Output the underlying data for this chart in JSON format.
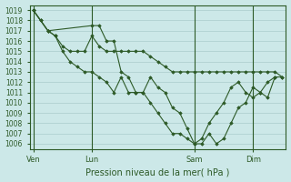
{
  "title": "",
  "xlabel": "Pression niveau de la mer( hPa )",
  "ylabel": "",
  "background_color": "#cce8e8",
  "grid_color": "#aacccc",
  "line_color": "#2d5a27",
  "ylim": [
    1005.5,
    1019.5
  ],
  "yticks": [
    1006,
    1007,
    1008,
    1009,
    1010,
    1011,
    1012,
    1013,
    1014,
    1015,
    1016,
    1017,
    1018,
    1019
  ],
  "xtick_labels": [
    "Ven",
    "Lun",
    "Sam",
    "Dim"
  ],
  "xtick_positions": [
    0,
    8,
    22,
    30
  ],
  "xlim": [
    -0.5,
    34.5
  ],
  "series1_x": [
    0,
    1,
    2,
    8,
    9,
    10,
    11,
    12,
    13,
    14,
    15,
    16,
    17,
    18,
    19,
    20,
    21,
    22,
    23,
    24,
    25,
    26,
    27,
    28,
    29,
    30,
    31,
    32,
    33
  ],
  "series1_y": [
    1019,
    1018,
    1017,
    1017.5,
    1017.5,
    1016,
    1016,
    1013,
    1012.5,
    1011,
    1011,
    1012.5,
    1011.5,
    1011,
    1009.5,
    1009,
    1007.5,
    1006,
    1006,
    1007,
    1006,
    1006.5,
    1008,
    1009.5,
    1010,
    1011.5,
    1011,
    1012,
    1012.5
  ],
  "series2_x": [
    0,
    2,
    3,
    4,
    5,
    6,
    7,
    8,
    9,
    10,
    11,
    12,
    13,
    14,
    15,
    16,
    17,
    18,
    19,
    20,
    21,
    22,
    23,
    24,
    25,
    26,
    27,
    28,
    29,
    30,
    31,
    32,
    33,
    34
  ],
  "series2_y": [
    1019,
    1017,
    1016.5,
    1015.5,
    1015,
    1015,
    1015,
    1016.5,
    1015.5,
    1015,
    1015,
    1015,
    1015,
    1015,
    1015,
    1014.5,
    1014,
    1013.5,
    1013,
    1013,
    1013,
    1013,
    1013,
    1013,
    1013,
    1013,
    1013,
    1013,
    1013,
    1013,
    1013,
    1013,
    1013,
    1012.5
  ],
  "series3_x": [
    0,
    1,
    2,
    3,
    4,
    5,
    6,
    7,
    8,
    9,
    10,
    11,
    12,
    13,
    14,
    15,
    16,
    17,
    18,
    19,
    20,
    21,
    22,
    23,
    24,
    25,
    26,
    27,
    28,
    29,
    30,
    31,
    32,
    33,
    34
  ],
  "series3_y": [
    1019,
    1018,
    1017,
    1016.5,
    1015,
    1014,
    1013.5,
    1013,
    1013,
    1012.5,
    1012,
    1011,
    1012.5,
    1011,
    1011,
    1011,
    1010,
    1009,
    1008,
    1007,
    1007,
    1006.5,
    1006,
    1006.5,
    1008,
    1009,
    1010,
    1011.5,
    1012,
    1011,
    1010.5,
    1011,
    1010.5,
    1012.5,
    1012.5
  ]
}
